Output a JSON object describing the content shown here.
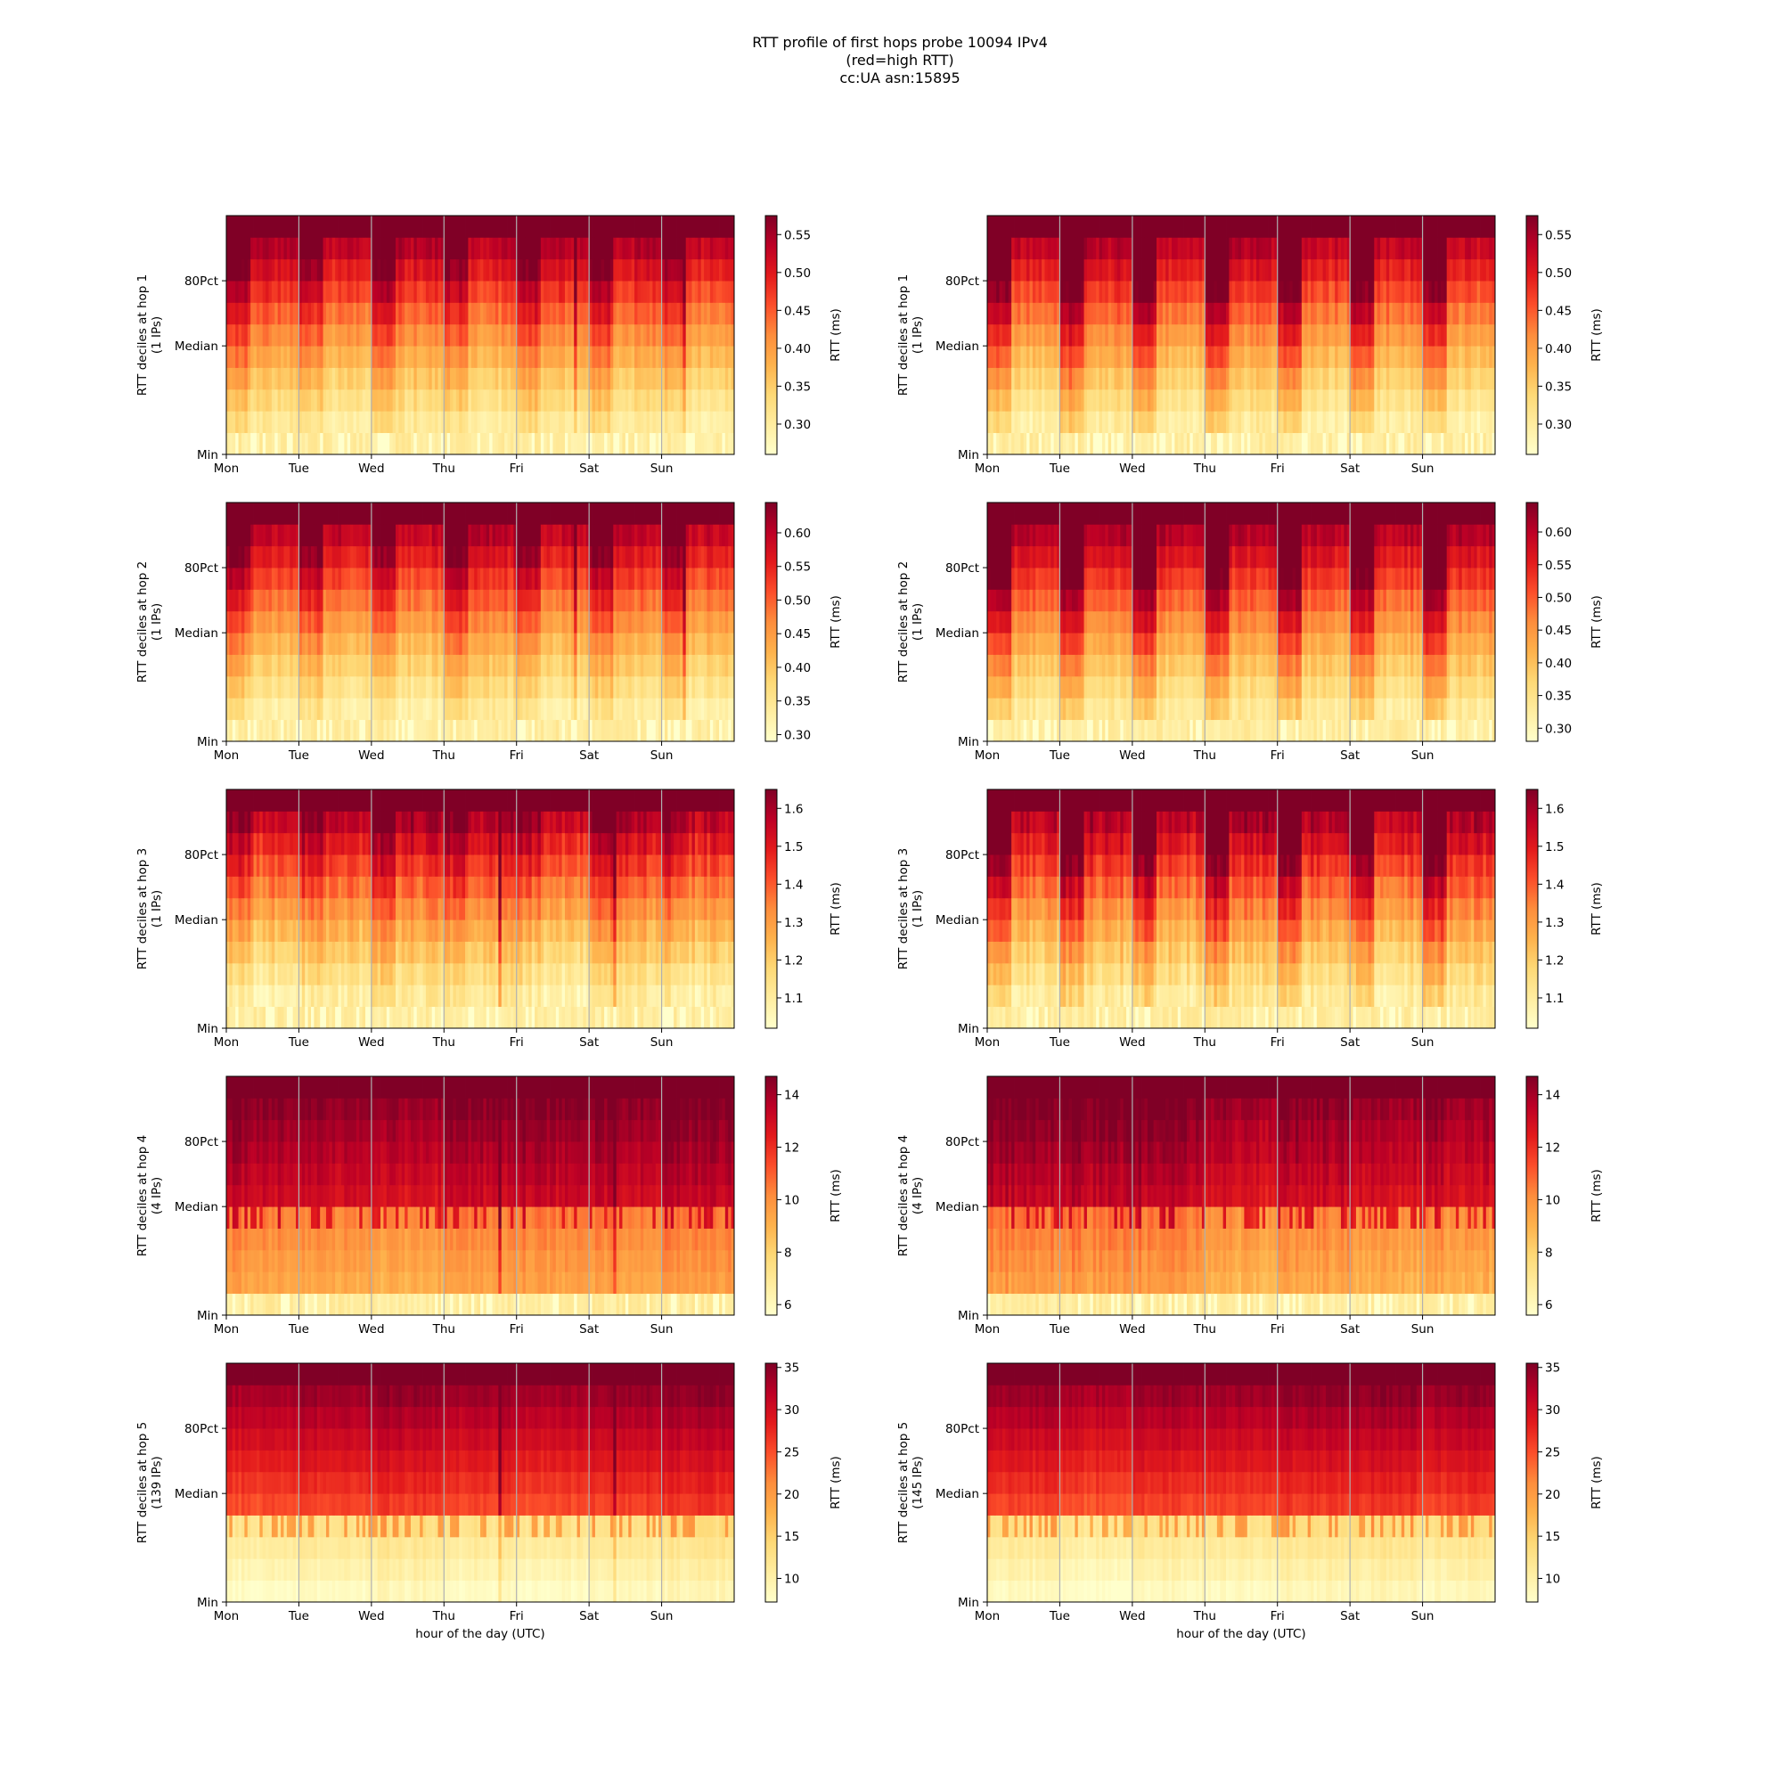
{
  "figure": {
    "title_lines": [
      "RTT profile of first hops probe 10094 IPv4",
      "(red=high RTT)",
      "cc:UA asn:15895"
    ]
  },
  "colormap": [
    "#ffffcc",
    "#ffeda0",
    "#fed976",
    "#feb24c",
    "#fd8d3c",
    "#fc4e2a",
    "#e31a1c",
    "#bd0026",
    "#800026"
  ],
  "chart_data": [
    {
      "type": "heatmap",
      "panel": "left",
      "hop": 1,
      "ylabel_line1": "RTT deciles at hop 1",
      "ylabel_line2": "(1 IPs)",
      "xlabel": "",
      "x_ticks": [
        "Mon",
        "Tue",
        "Wed",
        "Thu",
        "Fri",
        "Sat",
        "Sun"
      ],
      "y_ticks": [
        "Min",
        "Median",
        "80Pct"
      ],
      "colorbar": {
        "label": "RTT (ms)",
        "range": [
          0.26,
          0.575
        ],
        "ticks": [
          "0.30",
          "0.35",
          "0.40",
          "0.45",
          "0.50",
          "0.55"
        ],
        "tick_values": [
          0.3,
          0.35,
          0.4,
          0.45,
          0.5,
          0.55
        ]
      },
      "pattern": {
        "rows": 11,
        "cols": 168,
        "min_level": 0.06,
        "max_level": 0.97,
        "busy_hours": [
          0,
          8
        ],
        "busy_boost": 0.18,
        "noise": 0.05,
        "spikes": [
          [
            115,
            0.3
          ],
          [
            151,
            0.25
          ],
          [
            181,
            0.3
          ]
        ],
        "white_bottom": true
      }
    },
    {
      "type": "heatmap",
      "panel": "right",
      "hop": 1,
      "ylabel_line1": "RTT deciles at hop 1",
      "ylabel_line2": "(1 IPs)",
      "xlabel": "",
      "x_ticks": [
        "Mon",
        "Tue",
        "Wed",
        "Thu",
        "Fri",
        "Sat",
        "Sun"
      ],
      "y_ticks": [
        "Min",
        "Median",
        "80Pct"
      ],
      "colorbar": {
        "label": "RTT (ms)",
        "range": [
          0.26,
          0.575
        ],
        "ticks": [
          "0.30",
          "0.35",
          "0.40",
          "0.45",
          "0.50",
          "0.55"
        ],
        "tick_values": [
          0.3,
          0.35,
          0.4,
          0.45,
          0.5,
          0.55
        ]
      },
      "pattern": {
        "rows": 11,
        "cols": 168,
        "min_level": 0.06,
        "max_level": 0.97,
        "busy_hours": [
          0,
          8
        ],
        "busy_boost": 0.32,
        "noise": 0.05,
        "spikes": [],
        "white_bottom": true
      }
    },
    {
      "type": "heatmap",
      "panel": "left",
      "hop": 2,
      "ylabel_line1": "RTT deciles at hop 2",
      "ylabel_line2": "(1 IPs)",
      "xlabel": "",
      "x_ticks": [
        "Mon",
        "Tue",
        "Wed",
        "Thu",
        "Fri",
        "Sat",
        "Sun"
      ],
      "y_ticks": [
        "Min",
        "Median",
        "80Pct"
      ],
      "colorbar": {
        "label": "RTT (ms)",
        "range": [
          0.29,
          0.645
        ],
        "ticks": [
          "0.30",
          "0.35",
          "0.40",
          "0.45",
          "0.50",
          "0.55",
          "0.60"
        ],
        "tick_values": [
          0.3,
          0.35,
          0.4,
          0.45,
          0.5,
          0.55,
          0.6
        ]
      },
      "pattern": {
        "rows": 11,
        "cols": 168,
        "min_level": 0.06,
        "max_level": 0.97,
        "busy_hours": [
          0,
          8
        ],
        "busy_boost": 0.18,
        "noise": 0.05,
        "spikes": [
          [
            115,
            0.3
          ],
          [
            151,
            0.25
          ]
        ],
        "white_bottom": true
      }
    },
    {
      "type": "heatmap",
      "panel": "right",
      "hop": 2,
      "ylabel_line1": "RTT deciles at hop 2",
      "ylabel_line2": "(1 IPs)",
      "xlabel": "",
      "x_ticks": [
        "Mon",
        "Tue",
        "Wed",
        "Thu",
        "Fri",
        "Sat",
        "Sun"
      ],
      "y_ticks": [
        "Min",
        "Median",
        "80Pct"
      ],
      "colorbar": {
        "label": "RTT (ms)",
        "range": [
          0.28,
          0.645
        ],
        "ticks": [
          "0.30",
          "0.35",
          "0.40",
          "0.45",
          "0.50",
          "0.55",
          "0.60"
        ],
        "tick_values": [
          0.3,
          0.35,
          0.4,
          0.45,
          0.5,
          0.55,
          0.6
        ]
      },
      "pattern": {
        "rows": 11,
        "cols": 168,
        "min_level": 0.06,
        "max_level": 0.97,
        "busy_hours": [
          0,
          8
        ],
        "busy_boost": 0.32,
        "noise": 0.05,
        "spikes": [],
        "white_bottom": true
      }
    },
    {
      "type": "heatmap",
      "panel": "left",
      "hop": 3,
      "ylabel_line1": "RTT deciles at hop 3",
      "ylabel_line2": "(1 IPs)",
      "xlabel": "",
      "x_ticks": [
        "Mon",
        "Tue",
        "Wed",
        "Thu",
        "Fri",
        "Sat",
        "Sun"
      ],
      "y_ticks": [
        "Min",
        "Median",
        "80Pct"
      ],
      "colorbar": {
        "label": "RTT (ms)",
        "range": [
          1.02,
          1.65
        ],
        "ticks": [
          "1.1",
          "1.2",
          "1.3",
          "1.4",
          "1.5",
          "1.6"
        ],
        "tick_values": [
          1.1,
          1.2,
          1.3,
          1.4,
          1.5,
          1.6
        ]
      },
      "pattern": {
        "rows": 11,
        "cols": 168,
        "min_level": 0.05,
        "max_level": 0.97,
        "busy_hours": [
          0,
          8
        ],
        "busy_boost": 0.1,
        "noise": 0.07,
        "spikes": [
          [
            90,
            0.45
          ],
          [
            128,
            0.4
          ]
        ],
        "white_bottom": true
      }
    },
    {
      "type": "heatmap",
      "panel": "right",
      "hop": 3,
      "ylabel_line1": "RTT deciles at hop 3",
      "ylabel_line2": "(1 IPs)",
      "xlabel": "",
      "x_ticks": [
        "Mon",
        "Tue",
        "Wed",
        "Thu",
        "Fri",
        "Sat",
        "Sun"
      ],
      "y_ticks": [
        "Min",
        "Median",
        "80Pct"
      ],
      "colorbar": {
        "label": "RTT (ms)",
        "range": [
          1.02,
          1.65
        ],
        "ticks": [
          "1.1",
          "1.2",
          "1.3",
          "1.4",
          "1.5",
          "1.6"
        ],
        "tick_values": [
          1.1,
          1.2,
          1.3,
          1.4,
          1.5,
          1.6
        ]
      },
      "pattern": {
        "rows": 11,
        "cols": 168,
        "min_level": 0.05,
        "max_level": 0.97,
        "busy_hours": [
          0,
          8
        ],
        "busy_boost": 0.26,
        "noise": 0.07,
        "spikes": [],
        "white_bottom": true
      }
    },
    {
      "type": "heatmap",
      "panel": "left",
      "hop": 4,
      "ylabel_line1": "RTT deciles at hop 4",
      "ylabel_line2": "(4 IPs)",
      "xlabel": "",
      "x_ticks": [
        "Mon",
        "Tue",
        "Wed",
        "Thu",
        "Fri",
        "Sat",
        "Sun"
      ],
      "y_ticks": [
        "Min",
        "Median",
        "80Pct"
      ],
      "colorbar": {
        "label": "RTT (ms)",
        "range": [
          5.6,
          14.7
        ],
        "ticks": [
          "6",
          "8",
          "10",
          "12",
          "14"
        ],
        "tick_values": [
          6,
          8,
          10,
          12,
          14
        ]
      },
      "pattern": {
        "rows": 11,
        "cols": 168,
        "min_level": 0.38,
        "max_level": 1.0,
        "step_row": 5,
        "step_jump": 0.45,
        "busy_hours": [
          0,
          8
        ],
        "busy_boost": 0.02,
        "noise": 0.04,
        "spikes": [
          [
            90,
            0.35
          ],
          [
            128,
            0.3
          ]
        ],
        "white_bottom": true
      }
    },
    {
      "type": "heatmap",
      "panel": "right",
      "hop": 4,
      "ylabel_line1": "RTT deciles at hop 4",
      "ylabel_line2": "(4 IPs)",
      "xlabel": "",
      "x_ticks": [
        "Mon",
        "Tue",
        "Wed",
        "Thu",
        "Fri",
        "Sat",
        "Sun"
      ],
      "y_ticks": [
        "Min",
        "Median",
        "80Pct"
      ],
      "colorbar": {
        "label": "RTT (ms)",
        "range": [
          5.6,
          14.7
        ],
        "ticks": [
          "6",
          "8",
          "10",
          "12",
          "14"
        ],
        "tick_values": [
          6,
          8,
          10,
          12,
          14
        ]
      },
      "pattern": {
        "rows": 11,
        "cols": 168,
        "min_level": 0.38,
        "max_level": 1.0,
        "step_row": 5,
        "step_jump": 0.45,
        "busy_hours": [
          0,
          8
        ],
        "busy_boost": 0.02,
        "noise": 0.05,
        "spikes": [],
        "white_bottom": true
      }
    },
    {
      "type": "heatmap",
      "panel": "left",
      "hop": 5,
      "ylabel_line1": "RTT deciles at hop 5",
      "ylabel_line2": "(139 IPs)",
      "xlabel": "hour of the day (UTC)",
      "x_ticks": [
        "Mon",
        "Tue",
        "Wed",
        "Thu",
        "Fri",
        "Sat",
        "Sun"
      ],
      "y_ticks": [
        "Min",
        "Median",
        "80Pct"
      ],
      "colorbar": {
        "label": "RTT (ms)",
        "range": [
          7.2,
          35.5
        ],
        "ticks": [
          "10",
          "15",
          "20",
          "25",
          "30",
          "35"
        ],
        "tick_values": [
          10,
          15,
          20,
          25,
          30,
          35
        ]
      },
      "pattern": {
        "rows": 11,
        "cols": 168,
        "min_level": 0.04,
        "max_level": 1.0,
        "step_row": 4,
        "step_jump": 0.45,
        "busy_hours": [
          0,
          8
        ],
        "busy_boost": 0.0,
        "noise": 0.03,
        "spikes": [
          [
            90,
            0.3
          ],
          [
            128,
            0.25
          ]
        ],
        "white_bottom": false
      }
    },
    {
      "type": "heatmap",
      "panel": "right",
      "hop": 5,
      "ylabel_line1": "RTT deciles at hop 5",
      "ylabel_line2": "(145 IPs)",
      "xlabel": "hour of the day (UTC)",
      "x_ticks": [
        "Mon",
        "Tue",
        "Wed",
        "Thu",
        "Fri",
        "Sat",
        "Sun"
      ],
      "y_ticks": [
        "Min",
        "Median",
        "80Pct"
      ],
      "colorbar": {
        "label": "RTT (ms)",
        "range": [
          7.2,
          35.5
        ],
        "ticks": [
          "10",
          "15",
          "20",
          "25",
          "30",
          "35"
        ],
        "tick_values": [
          10,
          15,
          20,
          25,
          30,
          35
        ]
      },
      "pattern": {
        "rows": 11,
        "cols": 168,
        "min_level": 0.04,
        "max_level": 1.0,
        "step_row": 4,
        "step_jump": 0.45,
        "busy_hours": [
          0,
          8
        ],
        "busy_boost": 0.0,
        "noise": 0.03,
        "spikes": [],
        "white_bottom": false
      }
    }
  ]
}
